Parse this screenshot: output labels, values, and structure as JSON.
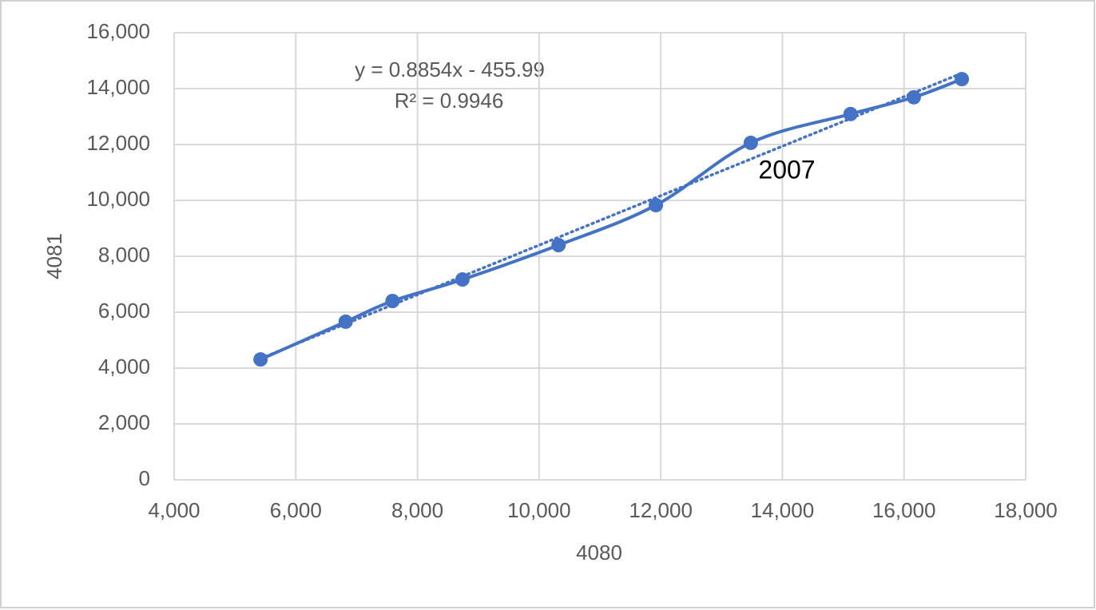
{
  "chart_data": {
    "type": "scatter",
    "x_label": "4080",
    "y_label": "4081",
    "x": [
      5420,
      6820,
      7590,
      8740,
      10320,
      11920,
      13480,
      15120,
      16160,
      16950
    ],
    "series": [
      {
        "color": "#4472c4",
        "values": [
          4310,
          5660,
          6400,
          7170,
          8400,
          9830,
          12060,
          13090,
          13690,
          14340
        ]
      }
    ],
    "smooth": true,
    "trendline": {
      "slope": 0.8854,
      "intercept": -455.99,
      "equation": "y = 0.8854x - 455.99",
      "r_squared": "R² = 0.9946"
    },
    "annotation": "2007",
    "xlim": [
      4000,
      18000
    ],
    "xticks": [
      {
        "value": 4000,
        "label": "4,000"
      },
      {
        "value": 6000,
        "label": "6,000"
      },
      {
        "value": 8000,
        "label": "8,000"
      },
      {
        "value": 10000,
        "label": "10,000"
      },
      {
        "value": 12000,
        "label": "12,000"
      },
      {
        "value": 14000,
        "label": "14,000"
      },
      {
        "value": 16000,
        "label": "16,000"
      },
      {
        "value": 18000,
        "label": "18,000"
      }
    ],
    "ylim": [
      0,
      16000
    ],
    "yticks": [
      0,
      {
        "value": 2000,
        "label": "2,000"
      },
      {
        "value": 4000,
        "label": "4,000"
      },
      {
        "value": 6000,
        "label": "6,000"
      },
      {
        "value": 8000,
        "label": "8,000"
      },
      {
        "value": 10000,
        "label": "10,000"
      },
      {
        "value": 12000,
        "label": "12,000"
      },
      {
        "value": 14000,
        "label": "14,000"
      },
      {
        "value": 16000,
        "label": "16,000"
      }
    ],
    "grid": true
  }
}
